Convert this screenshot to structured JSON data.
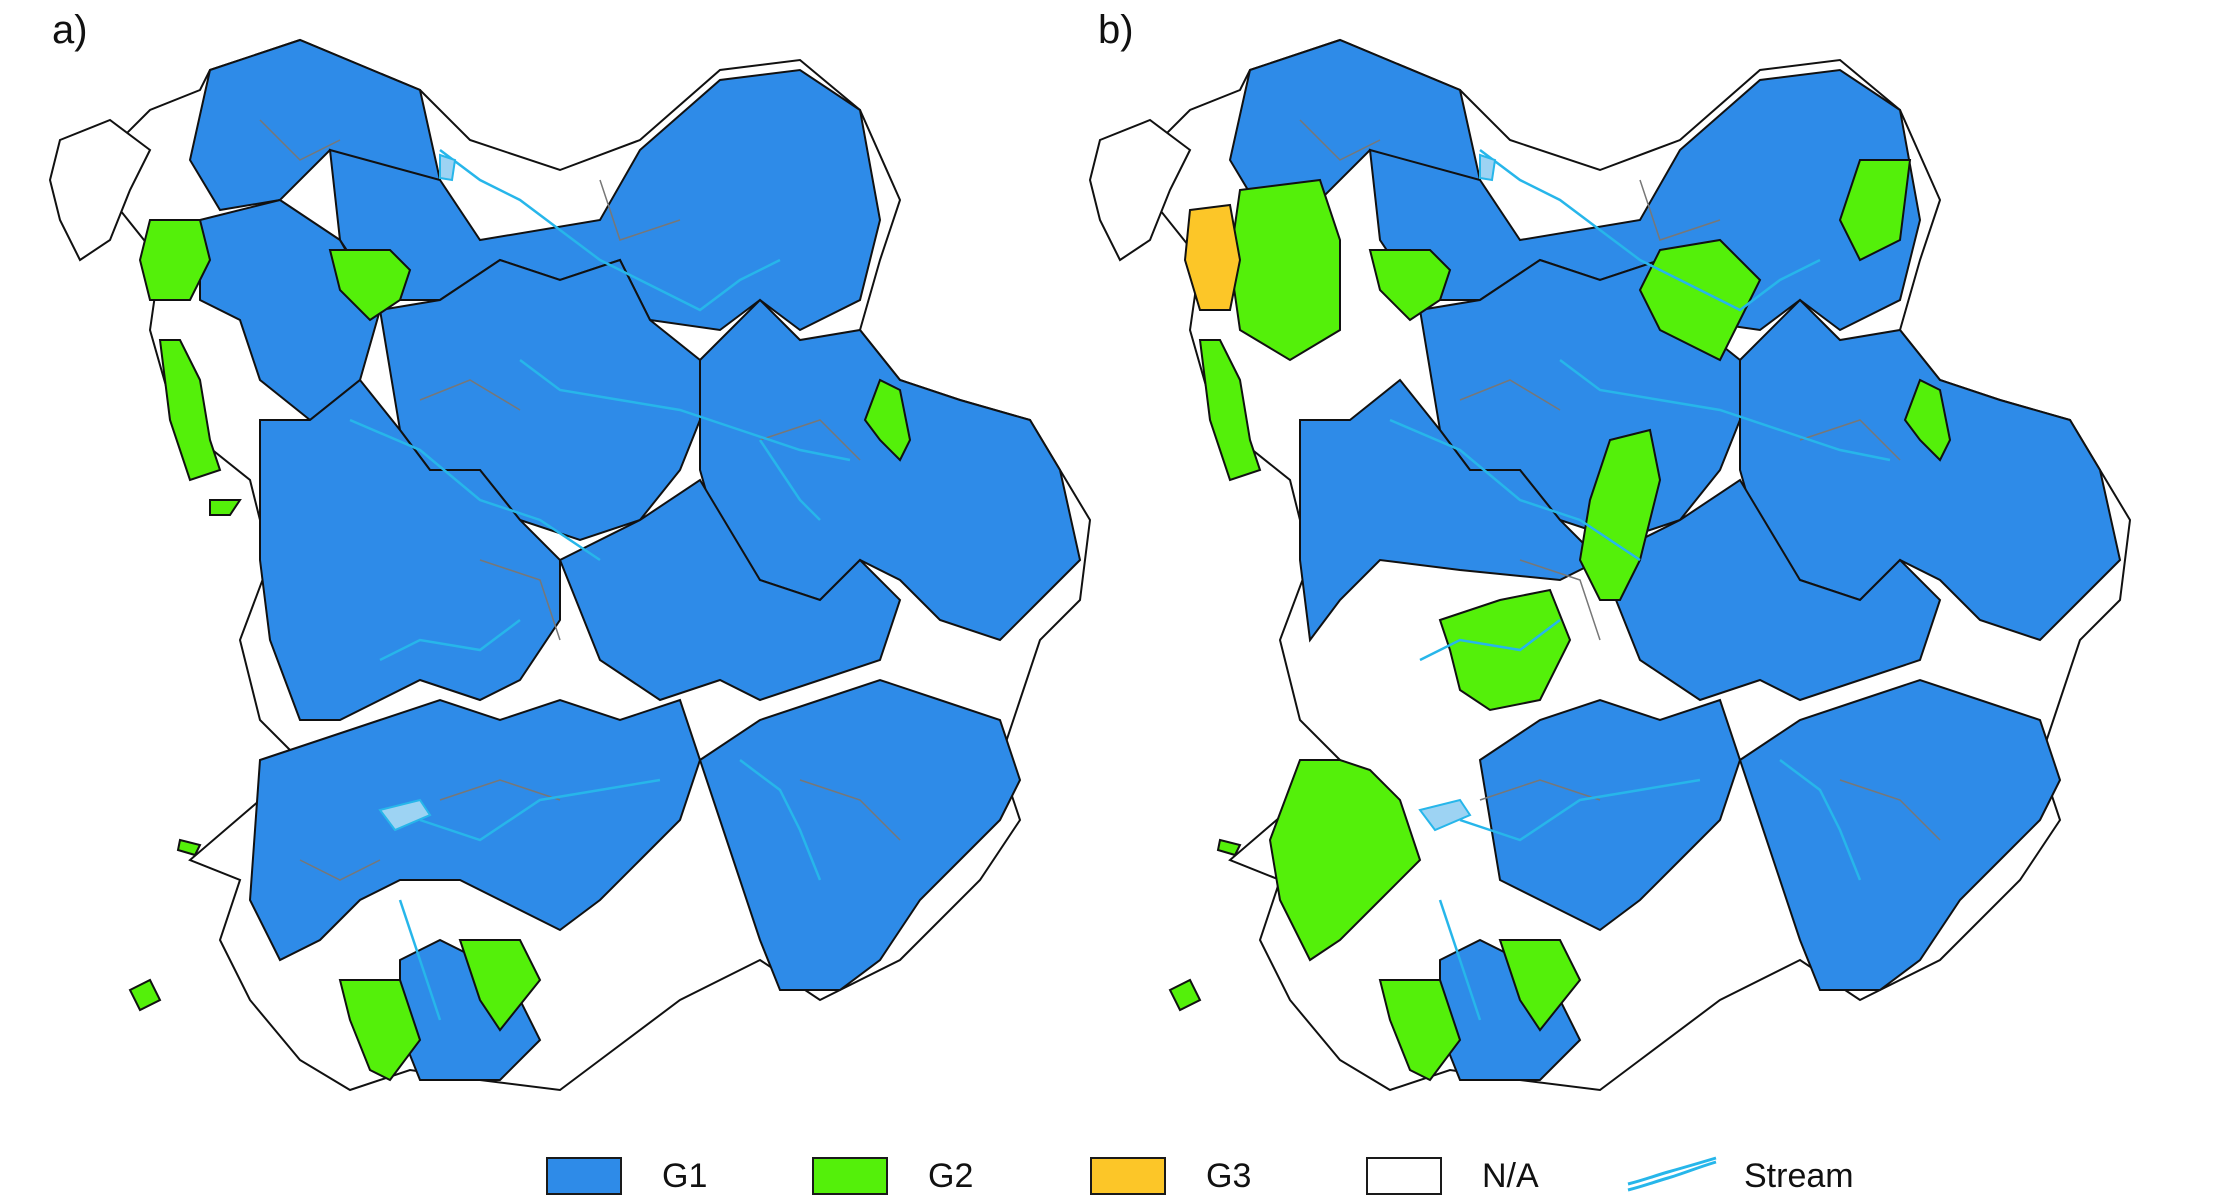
{
  "panels": [
    {
      "label": "a)"
    },
    {
      "label": "b)"
    }
  ],
  "legend": {
    "items": [
      {
        "label": "G1",
        "color": "#2e8be8"
      },
      {
        "label": "G2",
        "color": "#54f00a"
      },
      {
        "label": "G3",
        "color": "#fcc628"
      },
      {
        "label": "N/A",
        "color": "#ffffff"
      },
      {
        "label": "Stream",
        "color": "#27b6ea",
        "icon": "stream-icon"
      }
    ]
  },
  "colors": {
    "g1": "#2e8be8",
    "g2": "#54f00a",
    "g3": "#fcc628",
    "na": "#ffffff",
    "stream": "#27b6ea",
    "boundary": "#111111",
    "sub_boundary": "#777777"
  }
}
